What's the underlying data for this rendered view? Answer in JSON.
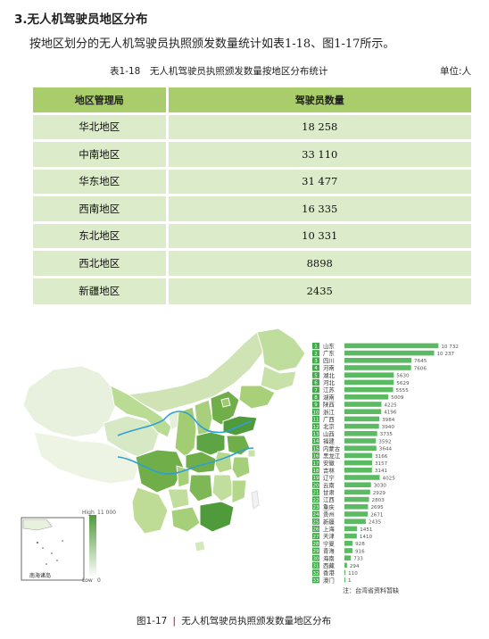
{
  "section": {
    "heading": "3.无人机驾驶员地区分布",
    "intro": "按地区划分的无人机驾驶员执照颁发数量统计如表1-18、图1-17所示。"
  },
  "table": {
    "caption": "表1-18　无人机驾驶员执照颁发数量按地区分布统计",
    "unit": "单位:人",
    "headers": [
      "地区管理局",
      "驾驶员数量"
    ],
    "rows": [
      {
        "region": "华北地区",
        "count": "18 258"
      },
      {
        "region": "中南地区",
        "count": "33 110"
      },
      {
        "region": "华东地区",
        "count": "31 477"
      },
      {
        "region": "西南地区",
        "count": "16 335"
      },
      {
        "region": "东北地区",
        "count": "10 331"
      },
      {
        "region": "西北地区",
        "count": "8898"
      },
      {
        "region": "新疆地区",
        "count": "2435"
      }
    ],
    "colors": {
      "header": "#a9cd6a",
      "row": "#dcebc9"
    }
  },
  "map": {
    "legend": {
      "high": "High",
      "max": "11 000",
      "low": "Low",
      "min": "0"
    },
    "inset_label": "南海诸岛",
    "colors": {
      "dark": "#5a9a3c",
      "mid": "#9ccc6a",
      "light": "#d4e8bd",
      "pale": "#e8f1de",
      "river": "#2e9fd6"
    }
  },
  "chart_data": {
    "type": "bar",
    "orientation": "horizontal",
    "categories": [
      "山东",
      "广东",
      "四川",
      "河南",
      "湖北",
      "河北",
      "江苏",
      "湖南",
      "陕西",
      "浙江",
      "广西",
      "北京",
      "山西",
      "福建",
      "内蒙古",
      "黑龙江",
      "安徽",
      "吉林",
      "辽宁",
      "云南",
      "甘肃",
      "江西",
      "重庆",
      "贵州",
      "新疆",
      "上海",
      "天津",
      "宁夏",
      "青海",
      "海南",
      "西藏",
      "香港",
      "澳门"
    ],
    "values": [
      10732,
      10237,
      7645,
      7606,
      5630,
      5629,
      5555,
      5009,
      4225,
      4196,
      3984,
      3940,
      3735,
      3592,
      3644,
      3166,
      3157,
      3141,
      4025,
      3030,
      2929,
      2803,
      2695,
      2671,
      2435,
      1451,
      1410,
      928,
      916,
      733,
      294,
      110,
      1
    ],
    "value_labels": [
      "10 732",
      "10 237",
      "7645",
      "7606",
      "5630",
      "5629",
      "5555",
      "5009",
      "4225",
      "4196",
      "3984",
      "3940",
      "3735",
      "3592",
      "3644",
      "3166",
      "3157",
      "3141",
      "4025",
      "3030",
      "2929",
      "2803",
      "2695",
      "2671",
      "2435",
      "1451",
      "1410",
      "928",
      "916",
      "733",
      "294",
      "110",
      "1"
    ],
    "xlim": [
      0,
      11000
    ],
    "bar_color": "#3fae48",
    "note": "注：台湾省资料暂缺",
    "caption_number": "图1-17",
    "caption_text": "无人机驾驶员执照颁发数量地区分布"
  }
}
